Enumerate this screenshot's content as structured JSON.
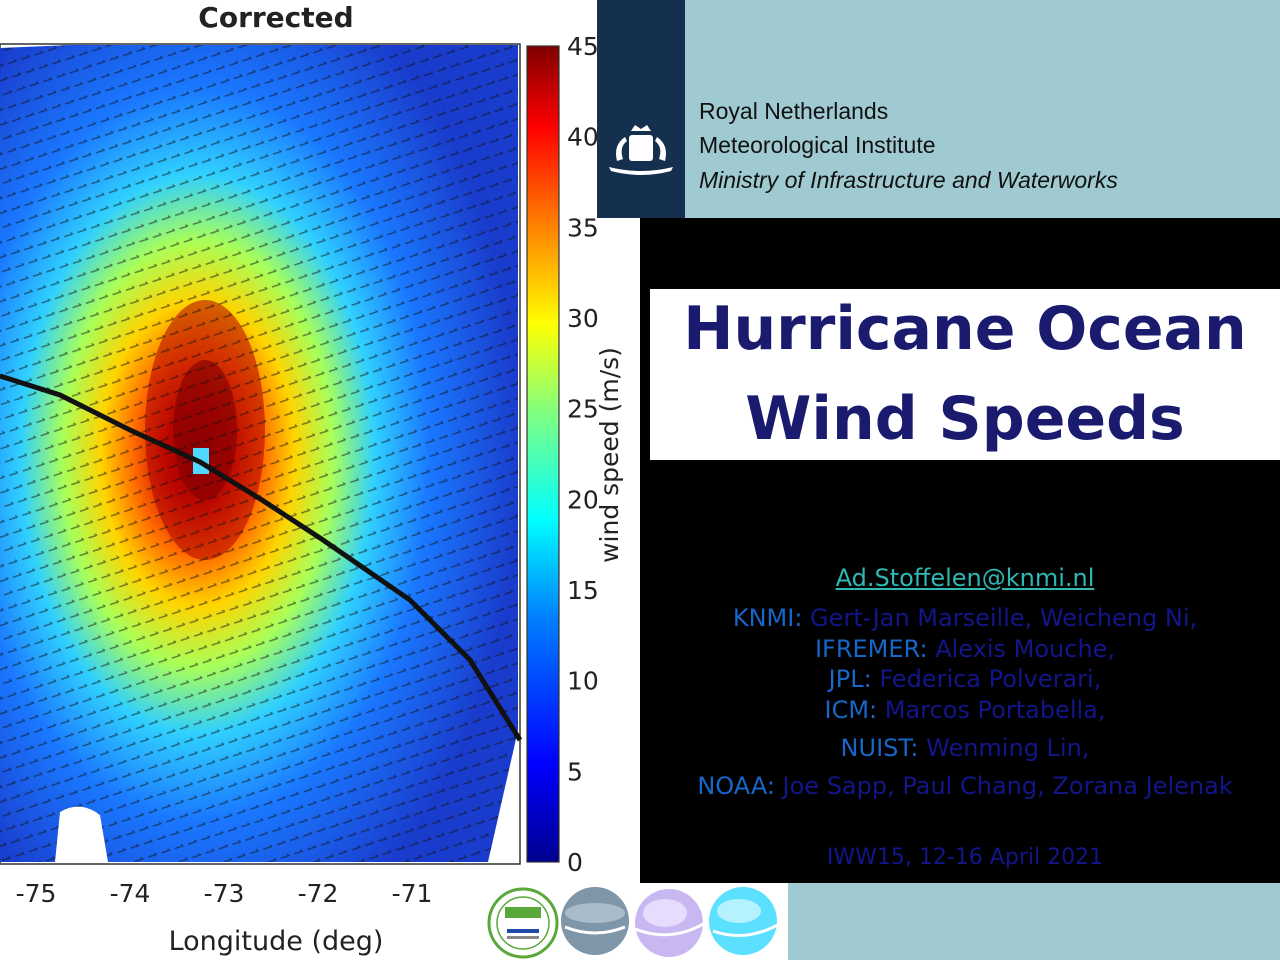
{
  "figure": {
    "title": "Corrected",
    "xlabel": "Longitude (deg)",
    "colorbar_label": "wind speed (m/s)",
    "x_ticks": [
      "-75",
      "-74",
      "-73",
      "-72",
      "-71"
    ],
    "colorbar_ticks": [
      "45",
      "40",
      "35",
      "30",
      "25",
      "20",
      "15",
      "10",
      "5",
      "0"
    ],
    "colorbar_range": [
      0,
      45
    ],
    "colorbar_colors": [
      "#00008f",
      "#0000ff",
      "#0080ff",
      "#00ffff",
      "#80ff80",
      "#ffff00",
      "#ff8000",
      "#ff0000",
      "#800000"
    ]
  },
  "header": {
    "institute_line1": "Royal Netherlands",
    "institute_line2": "Meteorological Institute",
    "ministry": "Ministry of Infrastructure and Waterworks",
    "emblem_icon": "royal-coat-of-arms-icon"
  },
  "title": {
    "line1": "Hurricane Ocean",
    "line2": "Wind Speeds"
  },
  "contact": {
    "email": "Ad.Stoffelen@knmi.nl"
  },
  "credits": [
    {
      "org": "KNMI:",
      "names": " Gert-Jan Marseille, Weicheng Ni,"
    },
    {
      "org": "IFREMER:",
      "names": " Alexis Mouche,"
    },
    {
      "org": "JPL:",
      "names": " Federica Polverari,"
    },
    {
      "org": "ICM:",
      "names": " Marcos Portabella,"
    },
    {
      "org": "NUIST:",
      "names": " Wenming Lin,"
    },
    {
      "org": "NOAA:",
      "names": " Joe Sapp, Paul Chang, Zorana Jelenak"
    }
  ],
  "event": "IWW15, 12-16 April 2021",
  "logos": [
    "copernicus-service-badge-icon",
    "eumetsat-osi-saf-sphere-icon",
    "nwp-saf-sphere-icon",
    "scatterometer-sphere-icon"
  ],
  "colors": {
    "navy": "#15304f",
    "teal": "#9fcad1",
    "title": "#1a1a6e",
    "org": "#1866c8",
    "names": "#12168a",
    "email": "#2db8b4"
  }
}
